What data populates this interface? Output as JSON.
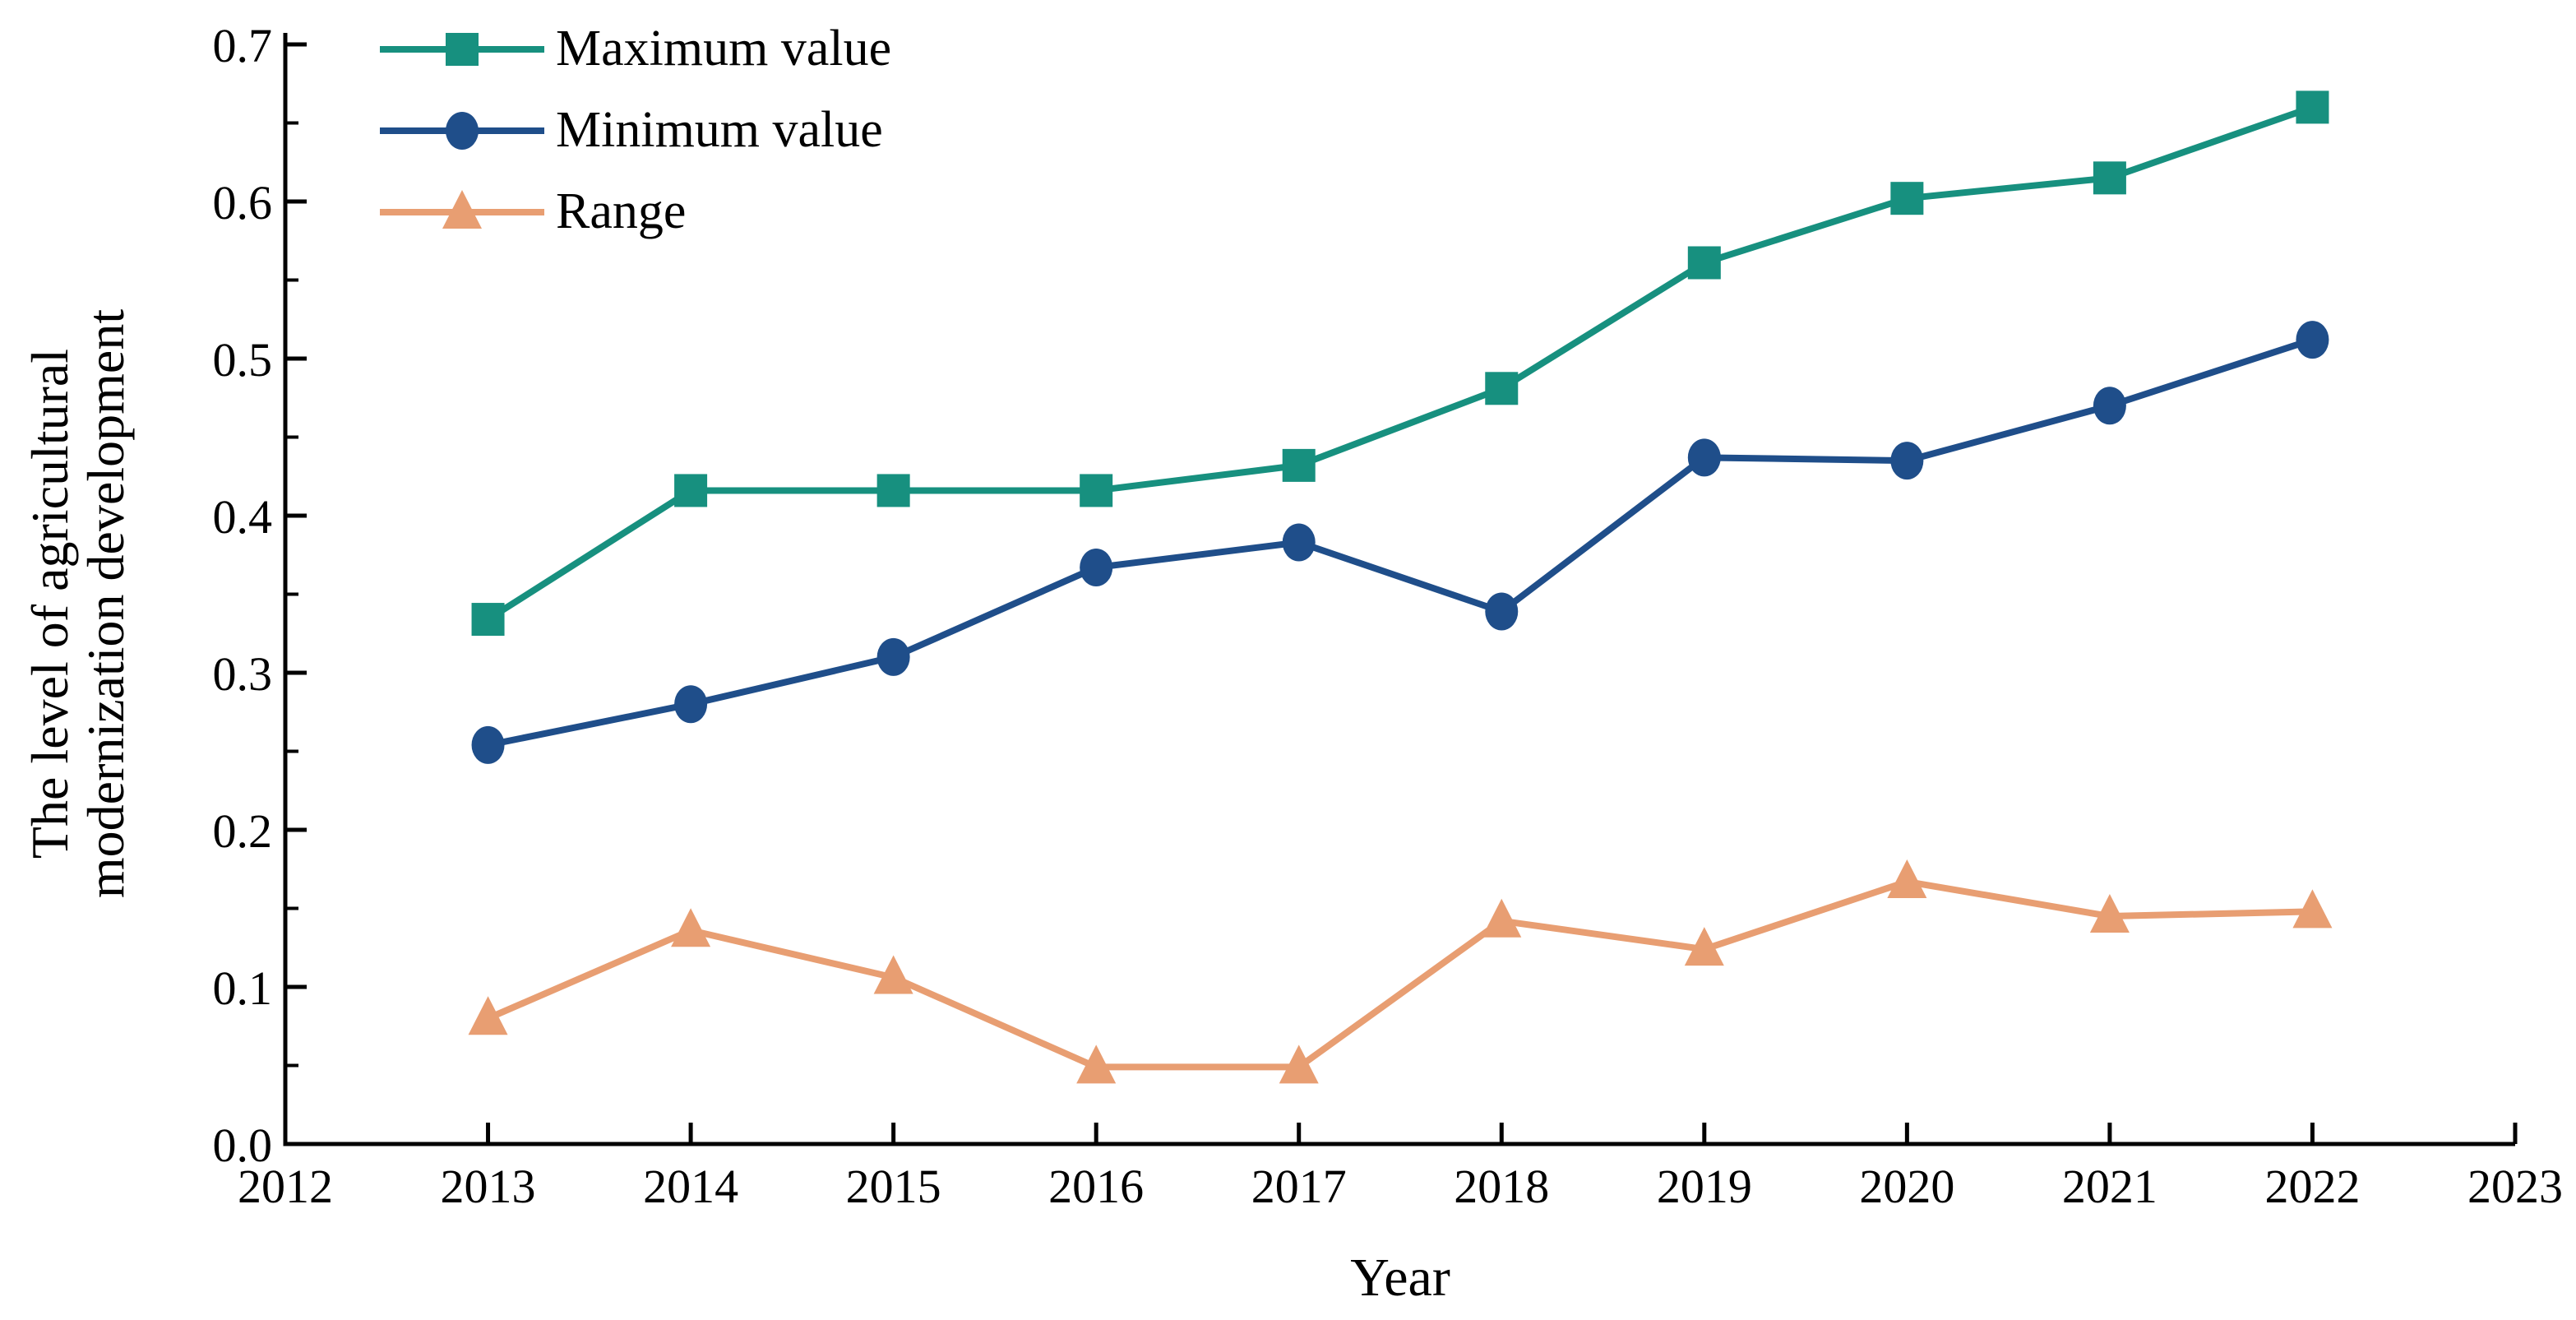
{
  "figure": {
    "background": "#ffffff",
    "axis_color": "#000000",
    "text_color": "#000000"
  },
  "chart_data": {
    "type": "line",
    "title": "",
    "xlabel": "Year",
    "ylabel": "The level of agricultural modernization development",
    "ylabel_lines": [
      "The level of agricultural",
      "modernization development"
    ],
    "x": [
      2013,
      2014,
      2015,
      2016,
      2017,
      2018,
      2019,
      2020,
      2021,
      2022
    ],
    "xlim": [
      2012,
      2023
    ],
    "ylim": [
      0.0,
      0.7
    ],
    "x_ticks": [
      2012,
      2013,
      2014,
      2015,
      2016,
      2017,
      2018,
      2019,
      2020,
      2021,
      2022,
      2023
    ],
    "x_tick_labels": [
      "2012",
      "2013",
      "2014",
      "2015",
      "2016",
      "2017",
      "2018",
      "2019",
      "2020",
      "2021",
      "2022",
      "2023"
    ],
    "y_major_ticks": [
      0.0,
      0.1,
      0.2,
      0.3,
      0.4,
      0.5,
      0.6,
      0.7
    ],
    "y_tick_labels": [
      "0.0",
      "0.1",
      "0.2",
      "0.3",
      "0.4",
      "0.5",
      "0.6",
      "0.7"
    ],
    "y_minor_ticks": [
      0.05,
      0.15,
      0.25,
      0.35,
      0.45,
      0.55,
      0.65
    ],
    "grid": false,
    "legend_position": "top-left-inside",
    "series": [
      {
        "name": "Maximum value",
        "marker": "square",
        "color": "#17907F",
        "values": [
          0.334,
          0.416,
          0.416,
          0.416,
          0.432,
          0.481,
          0.561,
          0.602,
          0.615,
          0.66
        ]
      },
      {
        "name": "Minimum value",
        "marker": "circle",
        "color": "#1F4E8A",
        "values": [
          0.254,
          0.28,
          0.31,
          0.367,
          0.383,
          0.339,
          0.437,
          0.435,
          0.47,
          0.512
        ]
      },
      {
        "name": "Range",
        "marker": "triangle",
        "color": "#E89E72",
        "values": [
          0.08,
          0.136,
          0.106,
          0.049,
          0.049,
          0.142,
          0.124,
          0.167,
          0.145,
          0.148
        ]
      }
    ]
  }
}
